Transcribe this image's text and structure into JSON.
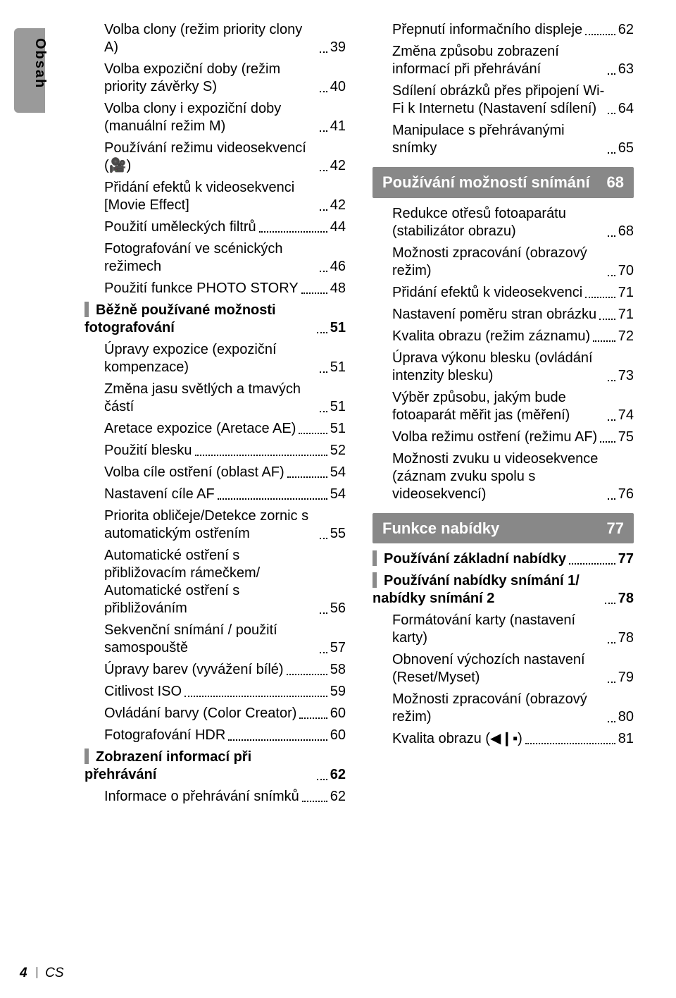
{
  "side_tab_label": "Obsah",
  "footer": {
    "page_number": "4",
    "lang": "CS"
  },
  "left": [
    {
      "lvl": 2,
      "text": "Volba clony (režim priority clony A)",
      "pg": "39"
    },
    {
      "lvl": 2,
      "text": "Volba expoziční doby (režim priority závěrky S)",
      "pg": "40"
    },
    {
      "lvl": 2,
      "text": "Volba clony i expoziční doby (manuální režim M)",
      "pg": "41"
    },
    {
      "lvl": 2,
      "text": "Používání režimu videosekvencí (🎥)",
      "pg": "42"
    },
    {
      "lvl": 2,
      "text": "Přidání efektů k videosekvenci [Movie Effect]",
      "pg": "42"
    },
    {
      "lvl": 2,
      "text": "Použití uměleckých filtrů",
      "pg": "44"
    },
    {
      "lvl": 2,
      "text": "Fotografování ve scénických režimech",
      "pg": "46"
    },
    {
      "lvl": 2,
      "text": "Použití funkce PHOTO STORY",
      "pg": "48"
    },
    {
      "lvl": 1,
      "bold": true,
      "marker": true,
      "text": "Běžně používané možnosti fotografování",
      "pg": "51"
    },
    {
      "lvl": 2,
      "text": "Úpravy expozice (expoziční kompenzace)",
      "pg": "51"
    },
    {
      "lvl": 2,
      "text": "Změna jasu světlých a tmavých částí",
      "pg": "51"
    },
    {
      "lvl": 2,
      "text": "Aretace expozice (Aretace AE)",
      "pg": "51"
    },
    {
      "lvl": 2,
      "text": "Použití blesku",
      "pg": "52"
    },
    {
      "lvl": 2,
      "text": "Volba cíle ostření (oblast AF)",
      "pg": "54"
    },
    {
      "lvl": 2,
      "text": "Nastavení cíle AF",
      "pg": "54"
    },
    {
      "lvl": 2,
      "text": "Priorita obličeje/Detekce zornic s automatickým ostřením",
      "pg": "55"
    },
    {
      "lvl": 2,
      "text": "Automatické ostření s přibližovacím rámečkem/ Automatické ostření s přibližováním",
      "pg": "56"
    },
    {
      "lvl": 2,
      "text": "Sekvenční snímání / použití samospouště",
      "pg": "57"
    },
    {
      "lvl": 2,
      "text": "Úpravy barev (vyvážení bílé)",
      "pg": "58"
    },
    {
      "lvl": 2,
      "text": "Citlivost ISO",
      "pg": "59"
    },
    {
      "lvl": 2,
      "text": "Ovládání barvy (Color Creator)",
      "pg": "60"
    },
    {
      "lvl": 2,
      "text": "Fotografování HDR",
      "pg": "60"
    },
    {
      "lvl": 1,
      "bold": true,
      "marker": true,
      "text": "Zobrazení informací při přehrávání",
      "pg": "62"
    },
    {
      "lvl": 2,
      "text": "Informace o přehrávání snímků",
      "pg": "62"
    }
  ],
  "right_top": [
    {
      "lvl": 2,
      "text": "Přepnutí informačního displeje",
      "pg": "62"
    },
    {
      "lvl": 2,
      "text": "Změna způsobu zobrazení informací při přehrávání",
      "pg": "63"
    },
    {
      "lvl": 2,
      "text": "Sdílení obrázků přes připojení Wi-Fi k Internetu (Nastavení sdílení)",
      "pg": "64"
    },
    {
      "lvl": 2,
      "text": "Manipulace s přehrávanými snímky",
      "pg": "65"
    }
  ],
  "section1": {
    "title": "Používání možností snímání",
    "pg": "68"
  },
  "right_mid": [
    {
      "lvl": 2,
      "text": "Redukce otřesů fotoaparátu (stabilizátor obrazu)",
      "pg": "68"
    },
    {
      "lvl": 2,
      "text": "Možnosti zpracování (obrazový režim)",
      "pg": "70"
    },
    {
      "lvl": 2,
      "text": "Přidání efektů k videosekvenci",
      "pg": "71"
    },
    {
      "lvl": 2,
      "text": "Nastavení poměru stran obrázku",
      "pg": "71"
    },
    {
      "lvl": 2,
      "text": "Kvalita obrazu (režim záznamu)",
      "pg": "72"
    },
    {
      "lvl": 2,
      "text": "Úprava výkonu blesku (ovládání intenzity blesku)",
      "pg": "73"
    },
    {
      "lvl": 2,
      "text": "Výběr způsobu, jakým bude fotoaparát měřit jas (měření)",
      "pg": "74"
    },
    {
      "lvl": 2,
      "text": "Volba režimu ostření (režimu AF)",
      "pg": "75"
    },
    {
      "lvl": 2,
      "text": "Možnosti zvuku u videosekvence (záznam zvuku spolu s videosekvencí)",
      "pg": "76"
    }
  ],
  "section2": {
    "title": "Funkce nabídky",
    "pg": "77"
  },
  "right_bot": [
    {
      "lvl": 1,
      "bold": true,
      "marker": true,
      "text": "Používání základní nabídky",
      "pg": "77"
    },
    {
      "lvl": 1,
      "bold": true,
      "marker": true,
      "text": "Používání nabídky snímání 1/ nabídky snímání 2",
      "pg": "78"
    },
    {
      "lvl": 2,
      "text": "Formátování karty (nastavení karty)",
      "pg": "78"
    },
    {
      "lvl": 2,
      "text": "Obnovení výchozích nastavení (Reset/Myset)",
      "pg": "79"
    },
    {
      "lvl": 2,
      "text": "Možnosti zpracování (obrazový režim)",
      "pg": "80"
    },
    {
      "lvl": 2,
      "text": "Kvalita obrazu (◀❙▪)",
      "pg": "81"
    }
  ]
}
